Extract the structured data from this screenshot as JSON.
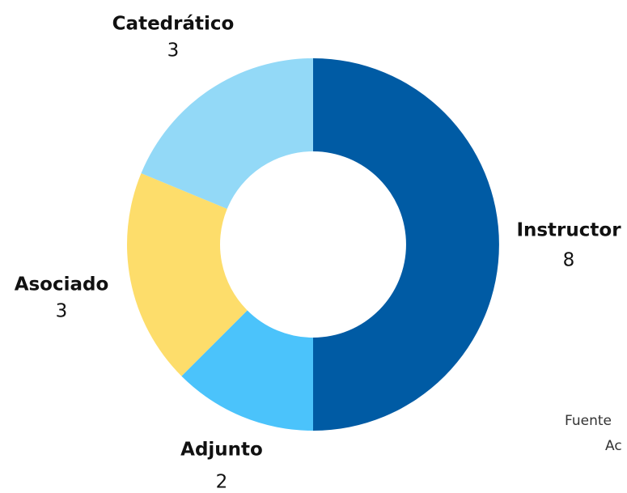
{
  "chart_data": {
    "type": "donut",
    "categories": [
      "Instructor",
      "Adjunto",
      "Asociado",
      "Catedrático"
    ],
    "values": [
      8,
      2,
      3,
      3
    ],
    "colors": [
      "#005ba4",
      "#4bc3fb",
      "#fddd6b",
      "#93d9f7"
    ],
    "annotations": [
      "Fuente",
      "Ac"
    ]
  }
}
